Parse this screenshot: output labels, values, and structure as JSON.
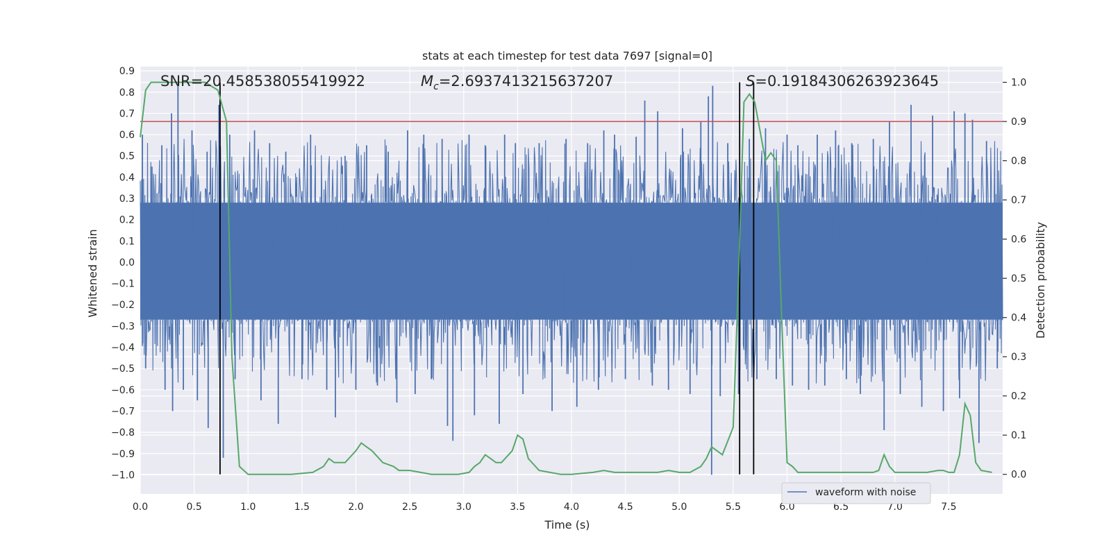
{
  "chart_data": {
    "type": "line",
    "title": "stats at each timestep for test data 7697 [signal=0]",
    "xlabel": "Time (s)",
    "ylabel": "Whitened strain",
    "y2label": "Detection probability",
    "xlim": [
      0.0,
      8.0
    ],
    "ylim": [
      -1.09,
      0.92
    ],
    "y2lim": [
      -0.05,
      1.04
    ],
    "xticks": [
      0.0,
      0.5,
      1.0,
      1.5,
      2.0,
      2.5,
      3.0,
      3.5,
      4.0,
      4.5,
      5.0,
      5.5,
      6.0,
      6.5,
      7.0,
      7.5
    ],
    "xtick_labels": [
      "0.0",
      "0.5",
      "1.0",
      "1.5",
      "2.0",
      "2.5",
      "3.0",
      "3.5",
      "4.0",
      "4.5",
      "5.0",
      "5.5",
      "6.0",
      "6.5",
      "7.0",
      "7.5"
    ],
    "yticks": [
      0.9,
      0.8,
      0.7,
      0.6,
      0.5,
      0.4,
      0.3,
      0.2,
      0.1,
      0.0,
      -0.1,
      -0.2,
      -0.3,
      -0.4,
      -0.5,
      -0.6,
      -0.7,
      -0.8,
      -0.9,
      -1.0
    ],
    "ytick_labels": [
      "0.9",
      "0.8",
      "0.7",
      "0.6",
      "0.5",
      "0.4",
      "0.3",
      "0.2",
      "0.1",
      "0.0",
      "−0.1",
      "−0.2",
      "−0.3",
      "−0.4",
      "−0.5",
      "−0.6",
      "−0.7",
      "−0.8",
      "−0.9",
      "−1.0"
    ],
    "y2ticks": [
      1.0,
      0.9,
      0.8,
      0.7,
      0.6,
      0.5,
      0.4,
      0.3,
      0.2,
      0.1,
      0.0
    ],
    "y2tick_labels": [
      "1.0",
      "0.9",
      "0.8",
      "0.7",
      "0.6",
      "0.5",
      "0.4",
      "0.3",
      "0.2",
      "0.1",
      "0.0"
    ],
    "grid": true,
    "legend_position": "bottom-right",
    "legend": [
      {
        "label": "waveform with noise",
        "color": "#4c72b0"
      }
    ],
    "annotations": {
      "snr": "SNR=20.458538055419922",
      "mc_symbol": "M",
      "mc_sub": "c",
      "mc_value": "=2.6937413215637207",
      "s_symbol": "S",
      "s_value": "=0.19184306263923645"
    },
    "threshold": {
      "y2": 0.9,
      "color": "#c44e52"
    },
    "vlines": [
      0.74,
      5.56,
      5.69
    ],
    "waveform": {
      "name": "waveform with noise",
      "color": "#4c72b0",
      "duration": 8.0,
      "dense_band": [
        -0.27,
        0.28
      ],
      "spikes": [
        [
          0.02,
          0.6
        ],
        [
          0.05,
          -0.5
        ],
        [
          0.1,
          0.45
        ],
        [
          0.2,
          0.55
        ],
        [
          0.23,
          -0.6
        ],
        [
          0.29,
          0.7
        ],
        [
          0.3,
          -0.7
        ],
        [
          0.35,
          0.83
        ],
        [
          0.4,
          -0.6
        ],
        [
          0.48,
          0.62
        ],
        [
          0.53,
          -0.65
        ],
        [
          0.62,
          0.52
        ],
        [
          0.63,
          -0.78
        ],
        [
          0.73,
          0.74
        ],
        [
          0.77,
          -0.92
        ],
        [
          0.83,
          0.6
        ],
        [
          0.88,
          -0.55
        ],
        [
          1.06,
          0.62
        ],
        [
          1.12,
          -0.65
        ],
        [
          1.2,
          0.56
        ],
        [
          1.28,
          -0.76
        ],
        [
          1.35,
          0.52
        ],
        [
          1.5,
          -0.55
        ],
        [
          1.58,
          0.6
        ],
        [
          1.73,
          -0.6
        ],
        [
          1.81,
          -0.73
        ],
        [
          1.9,
          0.5
        ],
        [
          2.0,
          -0.6
        ],
        [
          2.1,
          0.55
        ],
        [
          2.2,
          -0.58
        ],
        [
          2.3,
          0.52
        ],
        [
          2.38,
          -0.66
        ],
        [
          2.48,
          0.62
        ],
        [
          2.55,
          -0.62
        ],
        [
          2.63,
          0.6
        ],
        [
          2.7,
          -0.55
        ],
        [
          2.8,
          0.58
        ],
        [
          2.85,
          -0.77
        ],
        [
          2.9,
          -0.84
        ],
        [
          3.05,
          0.6
        ],
        [
          3.1,
          -0.72
        ],
        [
          3.2,
          0.55
        ],
        [
          3.33,
          -0.76
        ],
        [
          3.38,
          0.6
        ],
        [
          3.48,
          0.56
        ],
        [
          3.55,
          -0.62
        ],
        [
          3.7,
          0.56
        ],
        [
          3.82,
          -0.7
        ],
        [
          3.95,
          0.58
        ],
        [
          4.05,
          -0.68
        ],
        [
          4.15,
          0.56
        ],
        [
          4.25,
          -0.6
        ],
        [
          4.3,
          0.62
        ],
        [
          4.4,
          0.6
        ],
        [
          4.5,
          -0.55
        ],
        [
          4.6,
          0.59
        ],
        [
          4.68,
          0.76
        ],
        [
          4.75,
          -0.58
        ],
        [
          4.8,
          0.71
        ],
        [
          4.9,
          -0.6
        ],
        [
          5.03,
          0.63
        ],
        [
          5.1,
          -0.62
        ],
        [
          5.2,
          0.66
        ],
        [
          5.27,
          0.78
        ],
        [
          5.3,
          -1.0
        ],
        [
          5.31,
          0.83
        ],
        [
          5.38,
          -0.63
        ],
        [
          5.45,
          0.56
        ],
        [
          5.55,
          -0.62
        ],
        [
          5.65,
          0.58
        ],
        [
          5.72,
          -0.55
        ],
        [
          5.8,
          0.63
        ],
        [
          5.9,
          -0.55
        ],
        [
          6.0,
          0.6
        ],
        [
          6.05,
          -0.58
        ],
        [
          6.1,
          0.55
        ],
        [
          6.2,
          -0.6
        ],
        [
          6.28,
          0.6
        ],
        [
          6.35,
          -0.58
        ],
        [
          6.45,
          0.62
        ],
        [
          6.55,
          -0.55
        ],
        [
          6.6,
          0.56
        ],
        [
          6.68,
          -0.62
        ],
        [
          6.8,
          0.58
        ],
        [
          6.9,
          -0.79
        ],
        [
          6.95,
          0.66
        ],
        [
          7.05,
          -0.62
        ],
        [
          7.15,
          0.74
        ],
        [
          7.25,
          -0.68
        ],
        [
          7.35,
          0.69
        ],
        [
          7.45,
          -0.7
        ],
        [
          7.55,
          0.71
        ],
        [
          7.6,
          -0.64
        ],
        [
          7.65,
          0.7
        ],
        [
          7.72,
          0.67
        ],
        [
          7.78,
          -0.85
        ],
        [
          7.85,
          0.57
        ],
        [
          7.95,
          -0.5
        ]
      ]
    },
    "probability": {
      "name": "detection probability",
      "color": "#55a868",
      "x": [
        0.0,
        0.05,
        0.1,
        0.2,
        0.3,
        0.5,
        0.6,
        0.72,
        0.8,
        0.85,
        0.92,
        1.0,
        1.1,
        1.2,
        1.4,
        1.6,
        1.7,
        1.75,
        1.8,
        1.85,
        1.9,
        2.0,
        2.05,
        2.1,
        2.15,
        2.25,
        2.35,
        2.4,
        2.5,
        2.6,
        2.7,
        2.8,
        2.95,
        3.05,
        3.1,
        3.15,
        3.2,
        3.25,
        3.3,
        3.35,
        3.45,
        3.5,
        3.55,
        3.6,
        3.7,
        3.8,
        3.9,
        4.0,
        4.2,
        4.3,
        4.4,
        4.5,
        4.6,
        4.8,
        4.9,
        5.0,
        5.1,
        5.2,
        5.25,
        5.3,
        5.35,
        5.4,
        5.5,
        5.55,
        5.6,
        5.65,
        5.7,
        5.8,
        5.85,
        5.9,
        5.95,
        6.0,
        6.05,
        6.1,
        6.2,
        6.4,
        6.6,
        6.8,
        6.85,
        6.9,
        6.95,
        7.0,
        7.05,
        7.1,
        7.2,
        7.3,
        7.4,
        7.45,
        7.5,
        7.55,
        7.6,
        7.65,
        7.7,
        7.75,
        7.8,
        7.9
      ],
      "y": [
        0.86,
        0.98,
        1.0,
        1.0,
        1.0,
        1.0,
        1.0,
        0.98,
        0.9,
        0.3,
        0.02,
        0.0,
        0.0,
        0.0,
        0.0,
        0.005,
        0.02,
        0.04,
        0.03,
        0.03,
        0.03,
        0.06,
        0.08,
        0.07,
        0.06,
        0.03,
        0.02,
        0.01,
        0.01,
        0.005,
        0.0,
        0.0,
        0.0,
        0.005,
        0.02,
        0.03,
        0.05,
        0.04,
        0.03,
        0.03,
        0.06,
        0.1,
        0.09,
        0.04,
        0.01,
        0.005,
        0.0,
        0.0,
        0.005,
        0.01,
        0.005,
        0.005,
        0.005,
        0.005,
        0.01,
        0.005,
        0.005,
        0.02,
        0.04,
        0.07,
        0.06,
        0.05,
        0.12,
        0.5,
        0.95,
        0.97,
        0.95,
        0.8,
        0.82,
        0.8,
        0.4,
        0.03,
        0.02,
        0.005,
        0.005,
        0.005,
        0.005,
        0.005,
        0.01,
        0.05,
        0.02,
        0.005,
        0.005,
        0.005,
        0.005,
        0.005,
        0.01,
        0.01,
        0.005,
        0.005,
        0.05,
        0.18,
        0.15,
        0.03,
        0.01,
        0.005
      ]
    }
  }
}
